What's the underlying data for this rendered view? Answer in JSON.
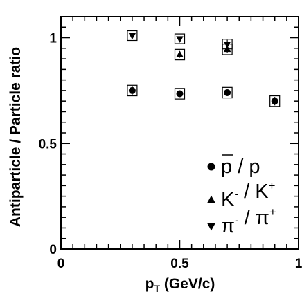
{
  "chart_data": {
    "type": "scatter",
    "xlabel": "p",
    "xlabel_sub": "T",
    "xlabel_unit": "(GeV/c)",
    "ylabel": "Antiparticle / Particle ratio",
    "xlim": [
      0,
      1
    ],
    "ylim": [
      0,
      1.1
    ],
    "x_ticks": [
      {
        "value": 0,
        "label": "0"
      },
      {
        "value": 0.5,
        "label": "0.5"
      },
      {
        "value": 1,
        "label": "1"
      }
    ],
    "y_ticks": [
      {
        "value": 0,
        "label": "0"
      },
      {
        "value": 0.5,
        "label": "0.5"
      },
      {
        "value": 1,
        "label": "1"
      }
    ],
    "grid": false,
    "legend_position": "bottom-right",
    "series": [
      {
        "marker": "circle",
        "legend": {
          "base1": "p",
          "sep": " / ",
          "base2": "p",
          "overline_first": true
        },
        "x": [
          0.3,
          0.5,
          0.7,
          0.9
        ],
        "y": [
          0.75,
          0.735,
          0.74,
          0.7
        ],
        "err": [
          0.02,
          0.015,
          0.015,
          0.02
        ],
        "sys": [
          0.025,
          0.025,
          0.025,
          0.025
        ]
      },
      {
        "marker": "triangle-up",
        "legend": {
          "base1": "K",
          "sup1": "-",
          "sep": " / ",
          "base2": "K",
          "sup2": "+"
        },
        "x": [
          0.5,
          0.7
        ],
        "y": [
          0.92,
          0.945
        ],
        "err": [
          0.015,
          0.015
        ],
        "sys": [
          0.025,
          0.025
        ]
      },
      {
        "marker": "triangle-down",
        "legend": {
          "base1": "π",
          "sup1": "-",
          "sep": " / ",
          "base2": "π",
          "sup2": "+"
        },
        "x": [
          0.3,
          0.5,
          0.7
        ],
        "y": [
          1.01,
          0.995,
          0.97
        ],
        "err": [
          0.01,
          0.01,
          0.02
        ],
        "sys": [
          0.02,
          0.02,
          0.02
        ]
      }
    ]
  }
}
